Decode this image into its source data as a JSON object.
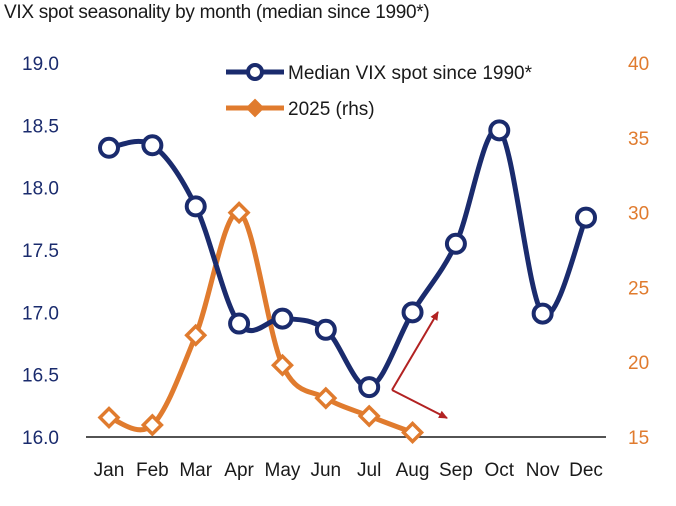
{
  "chart_data": {
    "type": "line",
    "title": "VIX spot seasonality by month (median since 1990*)",
    "categories": [
      "Jan",
      "Feb",
      "Mar",
      "Apr",
      "May",
      "Jun",
      "Jul",
      "Aug",
      "Sep",
      "Oct",
      "Nov",
      "Dec"
    ],
    "left_axis": {
      "ylim": [
        16.0,
        19.0
      ],
      "ticks": [
        "16.0",
        "16.5",
        "17.0",
        "17.5",
        "18.0",
        "18.5",
        "19.0"
      ]
    },
    "right_axis": {
      "ylim": [
        15,
        40
      ],
      "ticks": [
        "15",
        "20",
        "25",
        "30",
        "35",
        "40"
      ]
    },
    "series": [
      {
        "name": "Median VIX spot since 1990*",
        "axis": "left",
        "color": "#1a2b6d",
        "marker": "circle",
        "values": [
          18.32,
          18.34,
          17.85,
          16.91,
          16.95,
          16.86,
          16.4,
          17.0,
          17.55,
          18.46,
          16.99,
          17.76
        ]
      },
      {
        "name": "2025 (rhs)",
        "axis": "right",
        "color": "#e07b2e",
        "marker": "diamond",
        "values": [
          16.3,
          15.8,
          21.8,
          30.0,
          19.8,
          17.6,
          16.4,
          15.3,
          null,
          null,
          null,
          null
        ]
      }
    ],
    "annotations": [
      {
        "type": "arrow",
        "color": "#b22222",
        "from": [
          "Aug",
          16.5
        ],
        "to": [
          "Aug",
          17.1
        ],
        "direction": "up"
      },
      {
        "type": "arrow",
        "color": "#b22222",
        "from": [
          "Aug",
          16.5
        ],
        "to": [
          "Aug",
          16.15
        ],
        "direction": "down"
      }
    ],
    "legend_placement": "top-center",
    "grid": false
  }
}
